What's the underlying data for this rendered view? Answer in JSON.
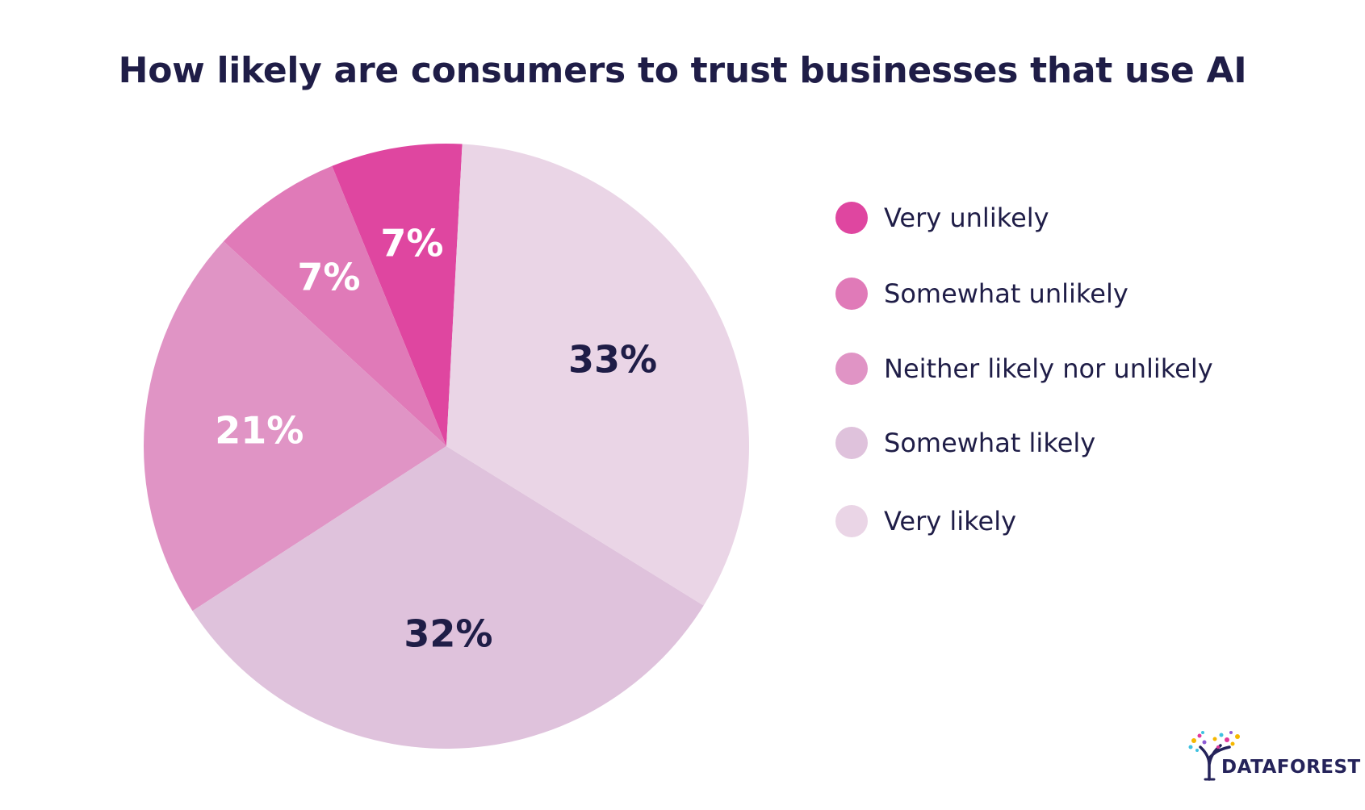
{
  "chart_data": {
    "type": "pie",
    "title": "How likely are consumers to trust businesses that use AI",
    "categories": [
      "Very unlikely",
      "Somewhat unlikely",
      "Neither likely nor unlikely",
      "Somewhat likely",
      "Very likely"
    ],
    "values": [
      7,
      7,
      21,
      32,
      33
    ],
    "value_labels": [
      "7%",
      "7%",
      "21%",
      "32%",
      "33%"
    ],
    "colors": [
      "#df46a0",
      "#e07ab8",
      "#e094c5",
      "#dfc2dc",
      "#ead5e6"
    ],
    "label_colors": [
      "#ffffff",
      "#ffffff",
      "#ffffff",
      "#1f1d47",
      "#1f1d47"
    ],
    "legend_position": "right"
  },
  "brand": {
    "logo_text": "DATAFOREST"
  }
}
